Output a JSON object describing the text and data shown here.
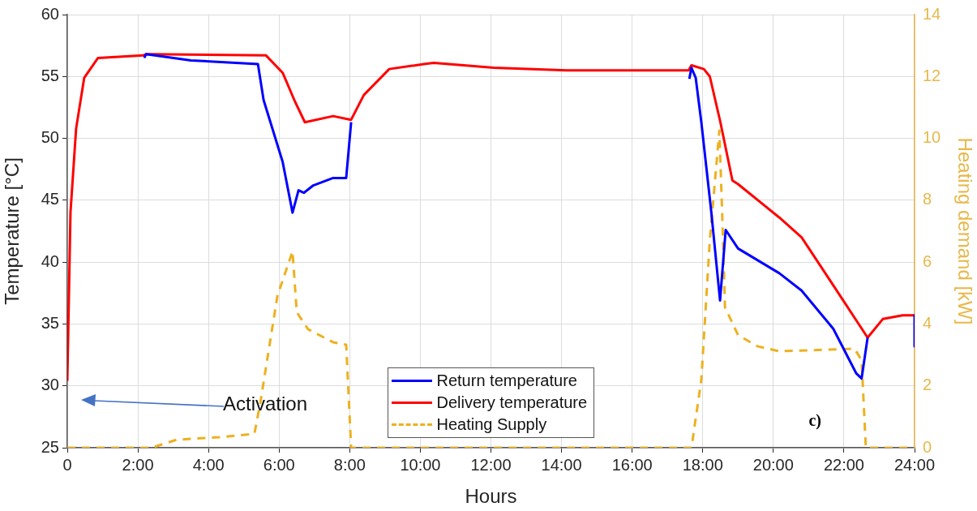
{
  "chart_data": {
    "type": "line",
    "xlabel": "Hours",
    "ylabel": "Temperature [°C]",
    "y2label": "Heating demand [kW]",
    "xlim": [
      0,
      24
    ],
    "xticks": [
      {
        "value": 0,
        "label": "0"
      },
      {
        "value": 2,
        "label": "2:00"
      },
      {
        "value": 4,
        "label": "4:00"
      },
      {
        "value": 6,
        "label": "6:00"
      },
      {
        "value": 8,
        "label": "8:00"
      },
      {
        "value": 10,
        "label": "10:00"
      },
      {
        "value": 12,
        "label": "12:00"
      },
      {
        "value": 14,
        "label": "14:00"
      },
      {
        "value": 16,
        "label": "16:00"
      },
      {
        "value": 18,
        "label": "18:00"
      },
      {
        "value": 20,
        "label": "20:00"
      },
      {
        "value": 22,
        "label": "22:00"
      },
      {
        "value": 24,
        "label": "24:00"
      }
    ],
    "ylim": [
      25,
      60
    ],
    "yticks": [
      25,
      30,
      35,
      40,
      45,
      50,
      55,
      60
    ],
    "y2lim": [
      0,
      14
    ],
    "y2ticks": [
      0,
      2,
      4,
      6,
      8,
      10,
      12,
      14
    ],
    "grid": true,
    "legend": "bottom",
    "marker": "none",
    "series": [
      {
        "name": "Return temperature",
        "color": "#0000ff",
        "line_style": "solid",
        "x": [
          2.18,
          2.23,
          3.5,
          5.4,
          5.56,
          6.1,
          6.38,
          6.55,
          6.7,
          6.97,
          7.53,
          7.9,
          8.04,
          null,
          17.62,
          17.68,
          17.8,
          17.96,
          18.24,
          18.49,
          18.65,
          19.0,
          20.17,
          20.8,
          21.7,
          22.35,
          22.5,
          22.67,
          null,
          24,
          24
        ],
        "values": [
          56.5,
          56.8,
          56.3,
          56.0,
          53.1,
          48.1,
          44.0,
          45.8,
          45.6,
          46.2,
          46.8,
          46.8,
          51.3,
          null,
          54.8,
          55.7,
          54.9,
          51.3,
          44.1,
          36.9,
          42.6,
          41.1,
          39.1,
          37.7,
          34.6,
          31.0,
          30.6,
          33.9,
          null,
          35.7,
          33.2
        ]
      },
      {
        "name": "Delivery temperature",
        "color": "#ff0000",
        "line_style": "solid",
        "x": [
          0,
          0.09,
          0.25,
          0.48,
          0.87,
          2.15,
          2.23,
          5.63,
          6.1,
          6.43,
          6.73,
          7.53,
          8.04,
          8.4,
          9.12,
          10.1,
          10.38,
          12.08,
          14.15,
          17.6,
          17.68,
          18.03,
          18.2,
          18.5,
          18.84,
          19.0,
          20.17,
          20.8,
          21.68,
          22.67,
          23.1,
          23.66,
          24
        ],
        "values": [
          30.4,
          44.0,
          50.8,
          54.9,
          56.5,
          56.7,
          56.8,
          56.7,
          55.3,
          53.1,
          51.3,
          51.8,
          51.5,
          53.5,
          55.6,
          56.0,
          56.1,
          55.7,
          55.5,
          55.5,
          55.9,
          55.6,
          55.0,
          51.3,
          46.6,
          46.3,
          43.6,
          42.0,
          38.2,
          33.9,
          35.4,
          35.7,
          35.7
        ]
      },
      {
        "name": "Heating Supply",
        "color": "#edb120",
        "line_style": "dashed",
        "axis": "y2",
        "x": [
          0,
          2.39,
          3.1,
          4.3,
          5.3,
          5.47,
          5.95,
          6.38,
          6.5,
          6.82,
          7.53,
          7.9,
          8.04,
          17.68,
          17.96,
          18.2,
          18.47,
          18.55,
          18.63,
          19.0,
          19.55,
          20.17,
          21.04,
          22.3,
          22.5,
          22.62,
          24
        ],
        "values": [
          0,
          0,
          0.26,
          0.34,
          0.45,
          1.47,
          4.9,
          6.35,
          4.38,
          3.83,
          3.41,
          3.33,
          0,
          0,
          2.2,
          6.7,
          10.25,
          7.6,
          4.54,
          3.64,
          3.28,
          3.12,
          3.15,
          3.2,
          2.83,
          0,
          0
        ]
      }
    ],
    "annotations": [
      "Activation",
      "c)"
    ]
  }
}
